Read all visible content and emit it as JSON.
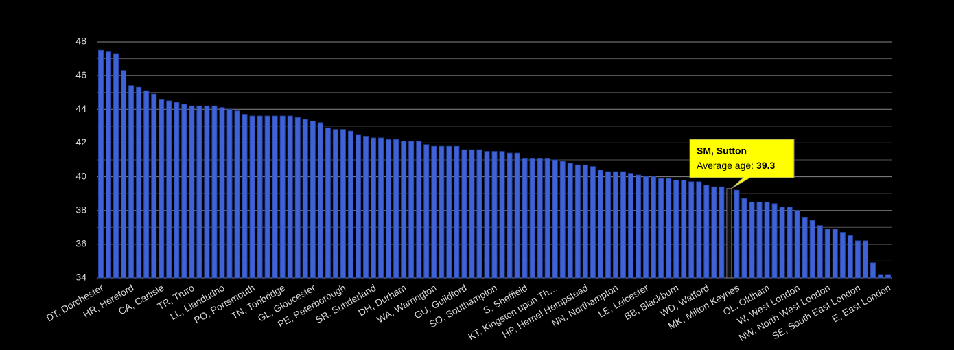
{
  "chart_data": {
    "type": "bar",
    "categories": [
      "DT, Dorchester",
      null,
      null,
      null,
      "HR, Hereford",
      null,
      null,
      null,
      "CA, Carlisle",
      null,
      null,
      null,
      "TR, Truro",
      null,
      null,
      null,
      "LL, Llandudno",
      null,
      null,
      null,
      "PO, Portsmouth",
      null,
      null,
      null,
      "TN, Tonbridge",
      null,
      null,
      null,
      "GL, Gloucester",
      null,
      null,
      null,
      "PE, Peterborough",
      null,
      null,
      null,
      "SR, Sunderland",
      null,
      null,
      null,
      "DH, Durham",
      null,
      null,
      null,
      "WA, Warrington",
      null,
      null,
      null,
      "GU, Guildford",
      null,
      null,
      null,
      "SO, Southampton",
      null,
      null,
      null,
      "S, Sheffield",
      null,
      null,
      null,
      "KT, Kingston upon Th…",
      null,
      null,
      null,
      "HP, Hemel Hempstead",
      null,
      null,
      null,
      "NN, Northampton",
      null,
      null,
      null,
      "LE, Leicester",
      null,
      null,
      null,
      "BB, Blackburn",
      null,
      null,
      null,
      "WD, Watford",
      null,
      null,
      null,
      "MK, Milton Keynes",
      null,
      null,
      null,
      "OL, Oldham",
      null,
      null,
      null,
      "W, West London",
      null,
      null,
      null,
      "NW, North West London",
      null,
      null,
      null,
      "SE, South East London",
      null,
      null,
      null,
      "E, East London"
    ],
    "values": [
      47.5,
      47.4,
      47.3,
      46.3,
      45.4,
      45.3,
      45.1,
      44.9,
      44.6,
      44.5,
      44.4,
      44.3,
      44.2,
      44.2,
      44.2,
      44.2,
      44.1,
      44.0,
      43.9,
      43.7,
      43.6,
      43.6,
      43.6,
      43.6,
      43.6,
      43.6,
      43.5,
      43.4,
      43.3,
      43.2,
      42.9,
      42.8,
      42.8,
      42.7,
      42.5,
      42.4,
      42.3,
      42.3,
      42.2,
      42.2,
      42.1,
      42.1,
      42.1,
      41.9,
      41.8,
      41.8,
      41.8,
      41.8,
      41.6,
      41.6,
      41.6,
      41.5,
      41.5,
      41.5,
      41.4,
      41.4,
      41.1,
      41.1,
      41.1,
      41.1,
      41.0,
      40.9,
      40.8,
      40.7,
      40.7,
      40.6,
      40.4,
      40.3,
      40.3,
      40.3,
      40.2,
      40.1,
      40.0,
      40.0,
      39.9,
      39.9,
      39.8,
      39.8,
      39.7,
      39.7,
      39.5,
      39.4,
      39.4,
      39.3,
      39.2,
      38.7,
      38.5,
      38.5,
      38.5,
      38.4,
      38.2,
      38.2,
      38.0,
      37.6,
      37.4,
      37.1,
      36.9,
      36.9,
      36.7,
      36.5,
      36.2,
      36.2,
      34.9,
      34.2,
      34.2
    ],
    "color": "#3f63d6",
    "highlight_color": "#111111",
    "ylim": [
      34,
      48
    ],
    "yticks": [
      34,
      36,
      38,
      40,
      42,
      44,
      46,
      48
    ],
    "grid": true,
    "tooltip": {
      "title": "SM, Sutton",
      "label": "Average age:",
      "value": 39.3
    }
  }
}
